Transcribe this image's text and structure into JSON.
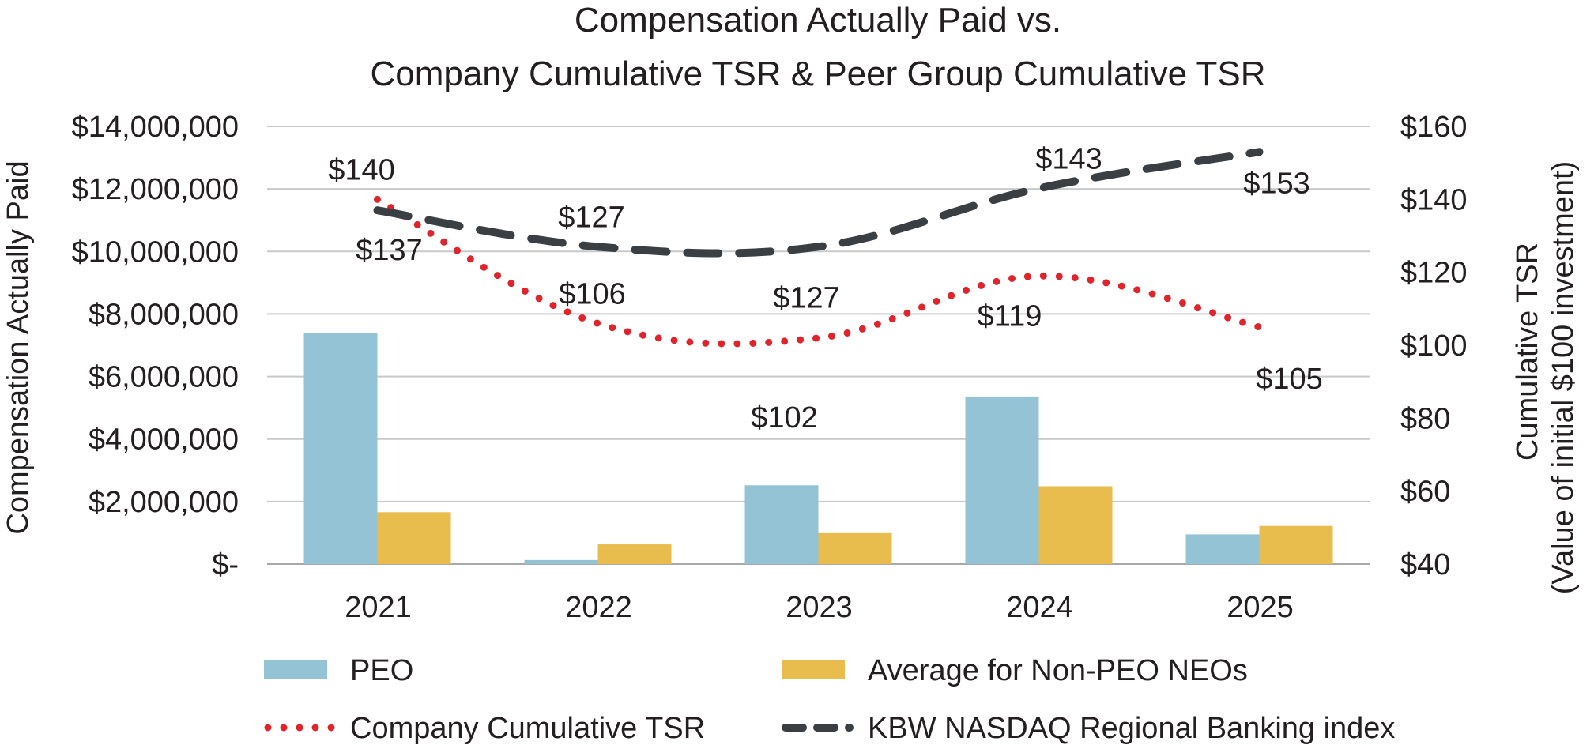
{
  "chart_data": {
    "type": "bar",
    "title": [
      "Compensation Actually Paid vs.",
      "Company Cumulative TSR & Peer Group Cumulative TSR"
    ],
    "categories": [
      "2021",
      "2022",
      "2023",
      "2024",
      "2025"
    ],
    "ylabel": "Compensation Actually Paid",
    "y2label": [
      "Cumulative TSR",
      "(Value of initial $100 investment)"
    ],
    "ylim": [
      0,
      14000000
    ],
    "y2lim": [
      40,
      160
    ],
    "yticks": [
      {
        "value": 0,
        "label": "$-"
      },
      {
        "value": 2000000,
        "label": "$2,000,000"
      },
      {
        "value": 4000000,
        "label": "$4,000,000"
      },
      {
        "value": 6000000,
        "label": "$6,000,000"
      },
      {
        "value": 8000000,
        "label": "$8,000,000"
      },
      {
        "value": 10000000,
        "label": "$10,000,000"
      },
      {
        "value": 12000000,
        "label": "$12,000,000"
      },
      {
        "value": 14000000,
        "label": "$14,000,000"
      }
    ],
    "y2ticks": [
      {
        "value": 40,
        "label": "$40"
      },
      {
        "value": 60,
        "label": "$60"
      },
      {
        "value": 80,
        "label": "$80"
      },
      {
        "value": 100,
        "label": "$100"
      },
      {
        "value": 120,
        "label": "$120"
      },
      {
        "value": 140,
        "label": "$140"
      },
      {
        "value": 160,
        "label": "$160"
      }
    ],
    "grid": true,
    "legend_position": "bottom",
    "series": [
      {
        "name": "PEO",
        "kind": "bar",
        "axis": "left",
        "color": "#93c3d5",
        "values": [
          7400000,
          130000,
          2520000,
          5360000,
          950000
        ]
      },
      {
        "name": "Average for Non-PEO NEOs",
        "kind": "bar",
        "axis": "left",
        "color": "#e8bc4d",
        "values": [
          1660000,
          630000,
          990000,
          2490000,
          1220000
        ]
      },
      {
        "name": "Company Cumulative TSR",
        "kind": "line",
        "style": "dotted",
        "axis": "right",
        "color": "#e0242b",
        "values": [
          140,
          106,
          102,
          119,
          105
        ],
        "labels": [
          "$140",
          "$106",
          "$102",
          "$119",
          "$105"
        ]
      },
      {
        "name": "KBW NASDAQ Regional Banking index",
        "kind": "line",
        "style": "dashed",
        "axis": "right",
        "color": "#3a3f44",
        "values": [
          137,
          127,
          127,
          143,
          153
        ],
        "labels": [
          "$137",
          "$127",
          "$127",
          "$143",
          "$153"
        ]
      }
    ]
  }
}
